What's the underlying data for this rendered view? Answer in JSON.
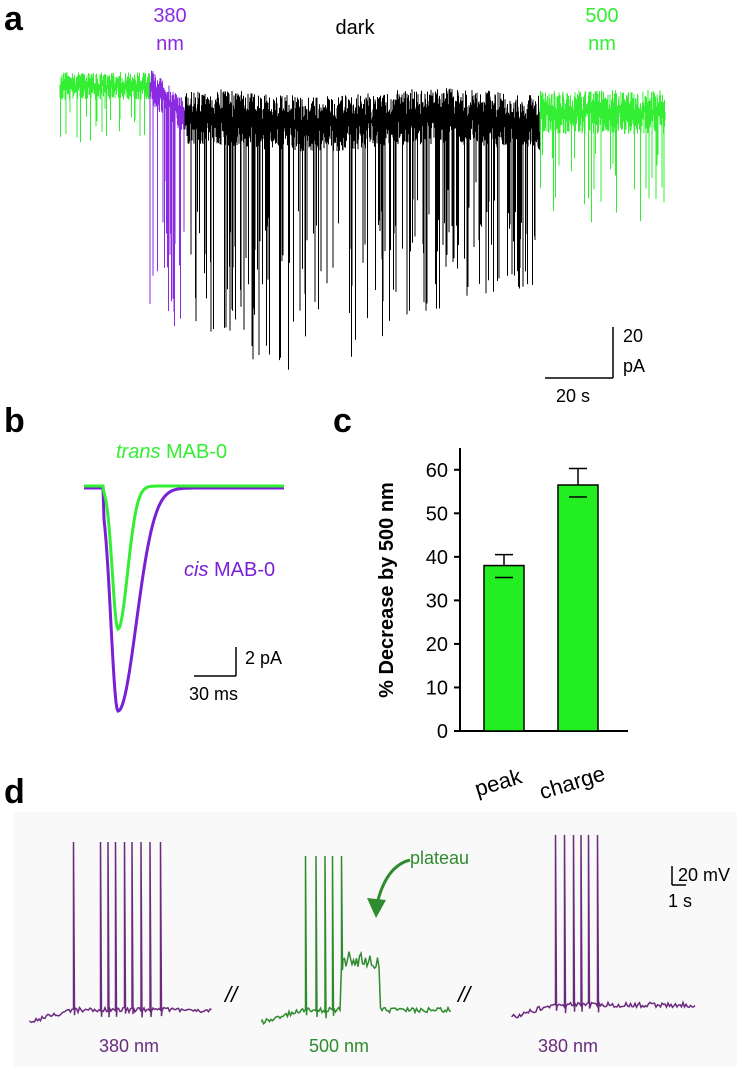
{
  "colors": {
    "violet": "#8a2be2",
    "green": "#33ee33",
    "black": "#000000",
    "dark_purple": "#6b2a7e",
    "dark_green": "#2e8b2e",
    "bar_fill": "#22ee22",
    "panel_d_bg": "#f9f9f9"
  },
  "panel_a": {
    "letter": "a",
    "label_380": [
      "380",
      "nm"
    ],
    "label_dark": "dark",
    "label_500": [
      "500",
      "nm"
    ],
    "scale_y": [
      "20",
      "pA"
    ],
    "scale_x": "20 s"
  },
  "panel_b": {
    "letter": "b",
    "trans_label": {
      "italic": "trans",
      "rest": " MAB-0"
    },
    "cis_label": {
      "italic": "cis",
      "rest": " MAB-0"
    },
    "scale_y": "2 pA",
    "scale_x": "30 ms"
  },
  "panel_d": {
    "letter": "d",
    "label_1": "380 nm",
    "label_2": "500 nm",
    "label_3": "380 nm",
    "plateau": "plateau",
    "break_1": "//",
    "break_2": "//",
    "scale_y": "20 mV",
    "scale_x": "1 s"
  },
  "chart_data": {
    "letter": "c",
    "type": "bar",
    "categories": [
      "peak",
      "charge"
    ],
    "values": [
      38,
      56.5
    ],
    "errors": [
      2.5,
      3.8
    ],
    "ylabel": "% Decrease by 500 nm",
    "ylim": [
      0,
      65
    ],
    "yticks": [
      "0",
      "10",
      "20",
      "30",
      "40",
      "50",
      "60"
    ],
    "grid": false,
    "color": "#22ee22"
  }
}
